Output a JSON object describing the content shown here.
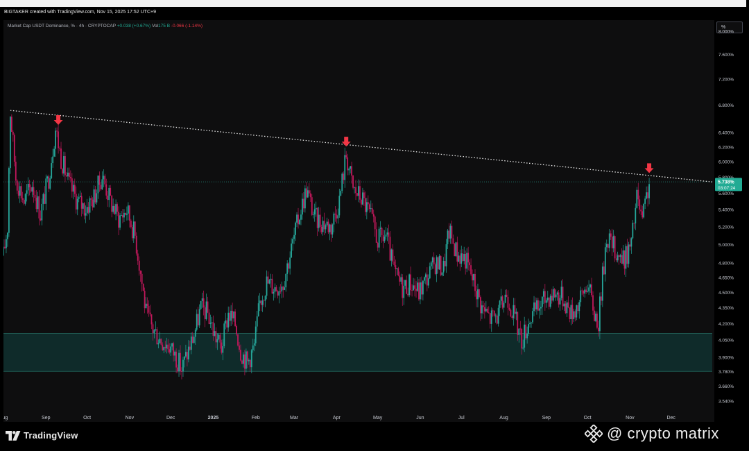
{
  "header": {
    "credit": "BIGTAKER created with TradingView.com, Nov 15, 2025 17:52 UTC+9"
  },
  "legend": {
    "symbol": "Market Cap USDT Dominance, % · 4h · CRYPTOCAP",
    "price_change": "+0.038 (+0.67%)",
    "vol_label": "Vol",
    "vol_value": "175 B",
    "vol_change": "-0.066 (-1.14%)"
  },
  "scale_button": "%",
  "branding": {
    "logo_text": "TradingView",
    "watermark": "@ crypto matrix"
  },
  "colors": {
    "up": "#22ab94",
    "down": "#f23645",
    "candle_up": "#26a69a",
    "candle_down": "#c2185b",
    "arrow": "#f23645",
    "zone_fill": "#0f2b2a",
    "zone_border": "#1f5a52",
    "price_tag": "#22ab94"
  },
  "chart_data": {
    "type": "candlestick",
    "title": "Market Cap USDT Dominance, % · 4h · CRYPTOCAP",
    "y_axis": {
      "scale": "log",
      "ylim": [
        3.45,
        8.2
      ],
      "ticks": [
        "8.000%",
        "7.600%",
        "7.200%",
        "6.800%",
        "6.400%",
        "6.200%",
        "6.000%",
        "5.800%",
        "5.600%",
        "5.400%",
        "5.200%",
        "5.000%",
        "4.800%",
        "4.650%",
        "4.500%",
        "4.350%",
        "4.200%",
        "4.050%",
        "3.900%",
        "3.780%",
        "3.660%",
        "3.540%"
      ]
    },
    "x_axis": {
      "range": [
        "2024-08-01",
        "2025-12-31"
      ],
      "ticks": [
        {
          "date": "2024-08-01",
          "label": "Aug"
        },
        {
          "date": "2024-09-01",
          "label": "Sep"
        },
        {
          "date": "2024-10-01",
          "label": "Oct"
        },
        {
          "date": "2024-11-01",
          "label": "Nov"
        },
        {
          "date": "2024-12-01",
          "label": "Dec"
        },
        {
          "date": "2025-01-01",
          "label": "2025"
        },
        {
          "date": "2025-02-01",
          "label": "Feb"
        },
        {
          "date": "2025-03-01",
          "label": "Mar"
        },
        {
          "date": "2025-04-01",
          "label": "Apr"
        },
        {
          "date": "2025-05-01",
          "label": "May"
        },
        {
          "date": "2025-06-01",
          "label": "Jun"
        },
        {
          "date": "2025-07-01",
          "label": "Jul"
        },
        {
          "date": "2025-08-01",
          "label": "Aug"
        },
        {
          "date": "2025-09-01",
          "label": "Sep"
        },
        {
          "date": "2025-10-01",
          "label": "Oct"
        },
        {
          "date": "2025-11-01",
          "label": "Nov"
        },
        {
          "date": "2025-12-01",
          "label": "Dec"
        }
      ]
    },
    "price_path": [
      [
        "2024-08-01",
        4.88
      ],
      [
        "2024-08-04",
        5.2
      ],
      [
        "2024-08-06",
        6.7
      ],
      [
        "2024-08-10",
        5.8
      ],
      [
        "2024-08-16",
        5.5
      ],
      [
        "2024-08-22",
        5.72
      ],
      [
        "2024-08-28",
        5.35
      ],
      [
        "2024-09-03",
        5.8
      ],
      [
        "2024-09-08",
        6.45
      ],
      [
        "2024-09-12",
        6.05
      ],
      [
        "2024-09-18",
        5.7
      ],
      [
        "2024-09-24",
        5.5
      ],
      [
        "2024-09-30",
        5.42
      ],
      [
        "2024-10-06",
        5.55
      ],
      [
        "2024-10-12",
        5.82
      ],
      [
        "2024-10-18",
        5.5
      ],
      [
        "2024-10-24",
        5.3
      ],
      [
        "2024-10-30",
        5.4
      ],
      [
        "2024-11-05",
        5.1
      ],
      [
        "2024-11-09",
        4.7
      ],
      [
        "2024-11-13",
        4.3
      ],
      [
        "2024-11-18",
        4.15
      ],
      [
        "2024-11-24",
        4.05
      ],
      [
        "2024-11-30",
        4.0
      ],
      [
        "2024-12-05",
        3.9
      ],
      [
        "2024-12-09",
        3.8
      ],
      [
        "2024-12-13",
        3.93
      ],
      [
        "2024-12-18",
        4.1
      ],
      [
        "2024-12-23",
        4.35
      ],
      [
        "2024-12-28",
        4.3
      ],
      [
        "2025-01-02",
        4.1
      ],
      [
        "2025-01-07",
        3.98
      ],
      [
        "2025-01-12",
        4.3
      ],
      [
        "2025-01-17",
        4.2
      ],
      [
        "2025-01-21",
        3.96
      ],
      [
        "2025-01-26",
        3.85
      ],
      [
        "2025-01-31",
        4.0
      ],
      [
        "2025-02-04",
        4.4
      ],
      [
        "2025-02-09",
        4.6
      ],
      [
        "2025-02-15",
        4.55
      ],
      [
        "2025-02-21",
        4.6
      ],
      [
        "2025-02-27",
        4.95
      ],
      [
        "2025-03-05",
        5.35
      ],
      [
        "2025-03-10",
        5.65
      ],
      [
        "2025-03-16",
        5.3
      ],
      [
        "2025-03-22",
        5.25
      ],
      [
        "2025-03-28",
        5.2
      ],
      [
        "2025-04-03",
        5.52
      ],
      [
        "2025-04-08",
        6.1
      ],
      [
        "2025-04-13",
        5.65
      ],
      [
        "2025-04-19",
        5.55
      ],
      [
        "2025-04-25",
        5.35
      ],
      [
        "2025-05-01",
        5.05
      ],
      [
        "2025-05-07",
        5.1
      ],
      [
        "2025-05-13",
        4.7
      ],
      [
        "2025-05-19",
        4.55
      ],
      [
        "2025-05-25",
        4.6
      ],
      [
        "2025-05-31",
        4.5
      ],
      [
        "2025-06-06",
        4.65
      ],
      [
        "2025-06-12",
        4.8
      ],
      [
        "2025-06-18",
        4.75
      ],
      [
        "2025-06-22",
        5.15
      ],
      [
        "2025-06-28",
        4.9
      ],
      [
        "2025-07-04",
        4.85
      ],
      [
        "2025-07-10",
        4.6
      ],
      [
        "2025-07-16",
        4.35
      ],
      [
        "2025-07-22",
        4.25
      ],
      [
        "2025-07-28",
        4.28
      ],
      [
        "2025-08-03",
        4.5
      ],
      [
        "2025-08-09",
        4.25
      ],
      [
        "2025-08-14",
        4.05
      ],
      [
        "2025-08-20",
        4.25
      ],
      [
        "2025-08-26",
        4.35
      ],
      [
        "2025-09-01",
        4.45
      ],
      [
        "2025-09-07",
        4.5
      ],
      [
        "2025-09-13",
        4.45
      ],
      [
        "2025-09-19",
        4.3
      ],
      [
        "2025-09-25",
        4.4
      ],
      [
        "2025-10-01",
        4.6
      ],
      [
        "2025-10-06",
        4.3
      ],
      [
        "2025-10-09",
        4.22
      ],
      [
        "2025-10-12",
        4.65
      ],
      [
        "2025-10-15",
        5.1
      ],
      [
        "2025-10-21",
        4.95
      ],
      [
        "2025-10-27",
        4.82
      ],
      [
        "2025-11-02",
        5.0
      ],
      [
        "2025-11-06",
        5.55
      ],
      [
        "2025-11-10",
        5.25
      ],
      [
        "2025-11-15",
        5.738
      ]
    ],
    "last_price": "5.738%",
    "countdown": "03:07:24",
    "last_price_value": 5.738,
    "trendline": {
      "start": [
        "2024-08-06",
        6.72
      ],
      "end": [
        "2025-12-31",
        5.74
      ]
    },
    "horizontal_level": 5.74,
    "support_zone": [
      3.78,
      4.11
    ],
    "arrows": [
      {
        "date": "2024-09-10",
        "price": 6.45
      },
      {
        "date": "2025-04-08",
        "price": 6.15
      },
      {
        "date": "2025-11-15",
        "price": 5.8
      }
    ]
  }
}
